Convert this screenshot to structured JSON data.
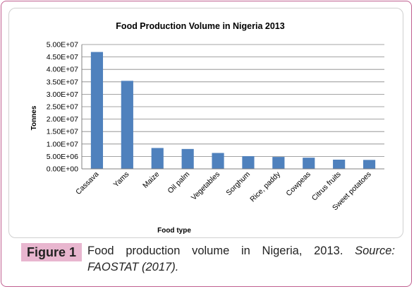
{
  "chart_data": {
    "type": "bar",
    "title": "Food Production Volume in Nigeria 2013",
    "xlabel": "Food type",
    "ylabel": "Tonnes",
    "categories": [
      "Cassava",
      "Yams",
      "Maize",
      "Oil palm",
      "Vegetables",
      "Sorghum",
      "Rice, paddy",
      "Cowpeas",
      "Citrus fruits",
      "Sweet potatoes"
    ],
    "values": [
      47000000,
      35400000,
      8400000,
      8000000,
      6400000,
      5100000,
      4800000,
      4500000,
      3700000,
      3600000
    ],
    "ylim": [
      0,
      50000000
    ],
    "yticks": [
      "0.00E+00",
      "5.00E+06",
      "1.00E+07",
      "1.50E+07",
      "2.00E+07",
      "2.50E+07",
      "3.00E+07",
      "3.50E+07",
      "4.00E+07",
      "4.50E+07",
      "5.00E+07"
    ],
    "grid": true,
    "legend": "none",
    "bar_color": "#4f81bd"
  },
  "caption": {
    "label": "Figure 1",
    "text": "Food production volume in Nigeria, 2013.",
    "source": "Source: FAOSTAT (2017)."
  }
}
